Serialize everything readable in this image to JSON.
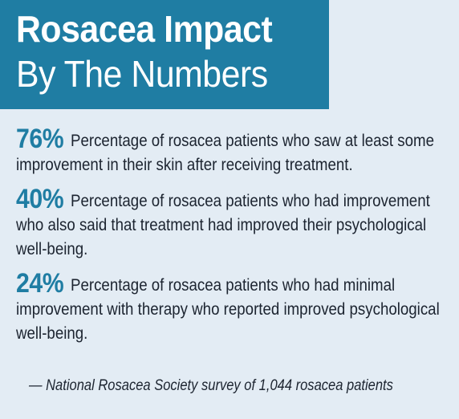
{
  "header": {
    "title_line1": "Rosacea Impact",
    "title_line2": "By The Numbers"
  },
  "stats": [
    {
      "number": "76%",
      "text": "Percentage of rosacea patients who saw at least some improvement in their skin after receiving treatment."
    },
    {
      "number": "40%",
      "text": "Percentage of rosacea patients who had improvement who also said that treatment had improved their psychological well-being."
    },
    {
      "number": "24%",
      "text": "Percentage of rosacea patients who had minimal improvement with therapy who reported improved psychological well-being."
    }
  ],
  "source": "— National Rosacea Society survey of 1,044 rosacea patients",
  "colors": {
    "accent": "#1f7da3",
    "background": "#e3ecf4",
    "text": "#1c2430"
  }
}
